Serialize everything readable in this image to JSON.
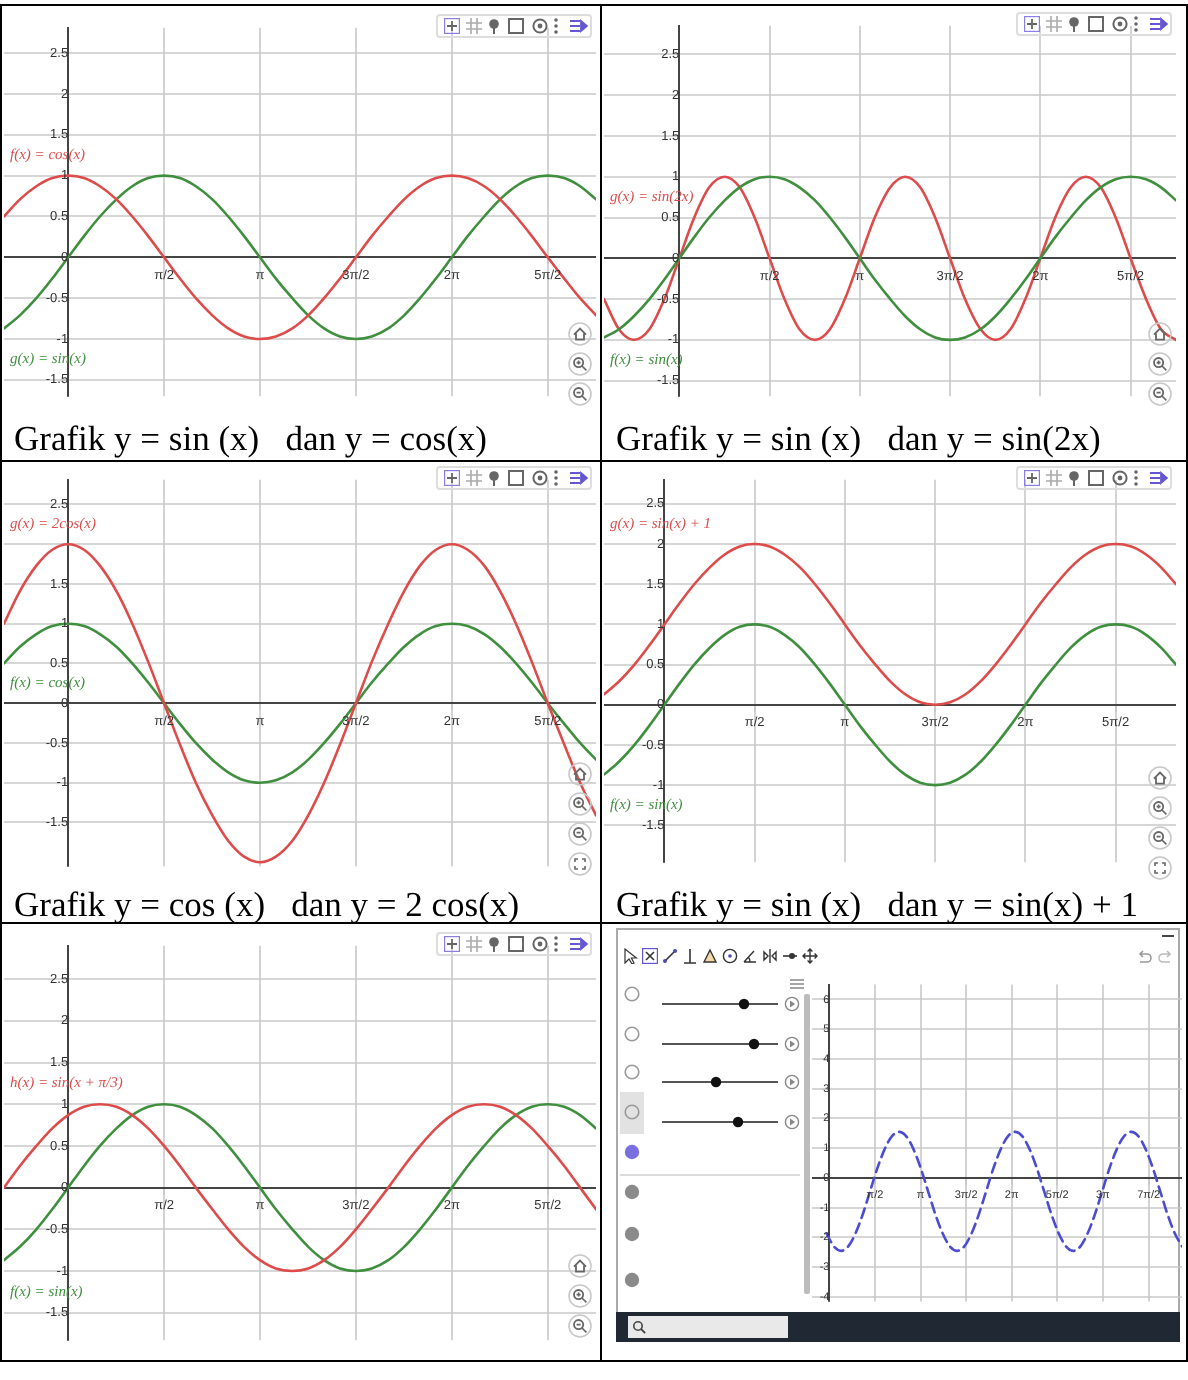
{
  "chart_data": [
    {
      "type": "line",
      "x": [
        -1.05,
        -0.79,
        -0.52,
        -0.26,
        0,
        0.26,
        0.52,
        0.79,
        1.05,
        1.31,
        1.57,
        1.83,
        2.09,
        2.36,
        2.62,
        2.88,
        3.14,
        3.4,
        3.67,
        3.93,
        4.19,
        4.45,
        4.71,
        4.97,
        5.24,
        5.5,
        5.76,
        6.02,
        6.28,
        6.54,
        6.81,
        7.07,
        7.33,
        7.59,
        7.85,
        8.12,
        8.38,
        8.64
      ],
      "series": [
        {
          "name": "f(x) = cos(x)",
          "color": "#dd4b4b",
          "values": [
            0.5,
            0.71,
            0.87,
            0.97,
            1,
            0.97,
            0.87,
            0.71,
            0.5,
            0.26,
            0,
            -0.26,
            -0.5,
            -0.71,
            -0.87,
            -0.97,
            -1,
            -0.97,
            -0.87,
            -0.71,
            -0.5,
            -0.26,
            0,
            0.26,
            0.5,
            0.71,
            0.87,
            0.97,
            1,
            0.97,
            0.87,
            0.71,
            0.5,
            0.26,
            0,
            -0.26,
            -0.5,
            -0.71
          ]
        },
        {
          "name": "g(x) = sin(x)",
          "color": "#3f8f3f",
          "values": [
            -0.87,
            -0.71,
            -0.5,
            -0.26,
            0,
            0.26,
            0.5,
            0.71,
            0.87,
            0.97,
            1,
            0.97,
            0.87,
            0.71,
            0.5,
            0.26,
            0,
            -0.26,
            -0.5,
            -0.71,
            -0.87,
            -0.97,
            -1,
            -0.97,
            -0.87,
            -0.71,
            -0.5,
            -0.26,
            0,
            0.26,
            0.5,
            0.71,
            0.87,
            0.97,
            1,
            0.97,
            0.87,
            0.71
          ]
        }
      ],
      "xlim": [
        -1.05,
        8.64
      ],
      "ylim": [
        -1.7,
        2.81
      ],
      "xticks": [
        {
          "value": 1.57,
          "label": "π/2"
        },
        {
          "value": 3.14,
          "label": "π"
        },
        {
          "value": 4.71,
          "label": "3π/2"
        },
        {
          "value": 6.28,
          "label": "2π"
        },
        {
          "value": 7.85,
          "label": "5π/2"
        }
      ],
      "yticks": [
        -1.5,
        -1,
        -0.5,
        0,
        0.5,
        1,
        1.5,
        2,
        2.5
      ],
      "grid": true,
      "legend": false,
      "marker": "none",
      "line_style": "solid",
      "annotations": [
        "Grafik y = sin (x)   dan y = cos(x)"
      ]
    },
    {
      "type": "line",
      "x": [
        -1.31,
        -1.05,
        -0.79,
        -0.52,
        -0.26,
        0,
        0.26,
        0.52,
        0.79,
        1.05,
        1.31,
        1.57,
        1.83,
        2.09,
        2.36,
        2.62,
        2.88,
        3.14,
        3.4,
        3.67,
        3.93,
        4.19,
        4.45,
        4.71,
        4.97,
        5.24,
        5.5,
        5.76,
        6.02,
        6.28,
        6.54,
        6.81,
        7.07,
        7.33,
        7.59,
        7.85,
        8.12,
        8.38,
        8.64
      ],
      "series": [
        {
          "name": "f(x) = sin(x)",
          "color": "#3f8f3f",
          "values": [
            -0.97,
            -0.87,
            -0.71,
            -0.5,
            -0.26,
            0,
            0.26,
            0.5,
            0.71,
            0.87,
            0.97,
            1,
            0.97,
            0.87,
            0.71,
            0.5,
            0.26,
            0,
            -0.26,
            -0.5,
            -0.71,
            -0.87,
            -0.97,
            -1,
            -0.97,
            -0.87,
            -0.71,
            -0.5,
            -0.26,
            0,
            0.26,
            0.5,
            0.71,
            0.87,
            0.97,
            1,
            0.97,
            0.87,
            0.71
          ]
        },
        {
          "name": "g(x) = sin(2x)",
          "color": "#dd4b4b",
          "values": [
            -0.5,
            -0.87,
            -1,
            -0.87,
            -0.5,
            0,
            0.5,
            0.87,
            1,
            0.87,
            0.5,
            0,
            -0.5,
            -0.87,
            -1,
            -0.87,
            -0.5,
            0,
            0.5,
            0.87,
            1,
            0.87,
            0.5,
            0,
            -0.5,
            -0.87,
            -1,
            -0.87,
            -0.5,
            0,
            0.5,
            0.87,
            1,
            0.87,
            0.5,
            0,
            -0.5,
            -0.87,
            -1
          ]
        }
      ],
      "xlim": [
        -1.31,
        8.64
      ],
      "ylim": [
        -1.69,
        2.85
      ],
      "xticks": [
        {
          "value": 1.57,
          "label": "π/2"
        },
        {
          "value": 3.14,
          "label": "π"
        },
        {
          "value": 4.71,
          "label": "3π/2"
        },
        {
          "value": 6.28,
          "label": "2π"
        },
        {
          "value": 7.85,
          "label": "5π/2"
        }
      ],
      "yticks": [
        -1.5,
        -1,
        -0.5,
        0,
        0.5,
        1,
        1.5,
        2,
        2.5
      ],
      "grid": true,
      "legend": false,
      "marker": "none",
      "line_style": "solid",
      "annotations": [
        "Grafik y = sin (x)   dan y = sin(2x)"
      ]
    },
    {
      "type": "line",
      "x": [
        -1.05,
        -0.79,
        -0.52,
        -0.26,
        0,
        0.26,
        0.52,
        0.79,
        1.05,
        1.31,
        1.57,
        1.83,
        2.09,
        2.36,
        2.62,
        2.88,
        3.14,
        3.4,
        3.67,
        3.93,
        4.19,
        4.45,
        4.71,
        4.97,
        5.24,
        5.5,
        5.76,
        6.02,
        6.28,
        6.54,
        6.81,
        7.07,
        7.33,
        7.59,
        7.85,
        8.12,
        8.38,
        8.64
      ],
      "series": [
        {
          "name": "g(x) = 2cos(x)",
          "color": "#dd4b4b",
          "values": [
            1,
            1.41,
            1.73,
            1.93,
            2,
            1.93,
            1.73,
            1.41,
            1,
            0.52,
            0,
            -0.52,
            -1,
            -1.41,
            -1.73,
            -1.93,
            -2,
            -1.93,
            -1.73,
            -1.41,
            -1,
            -0.52,
            0,
            0.52,
            1,
            1.41,
            1.73,
            1.93,
            2,
            1.93,
            1.73,
            1.41,
            1,
            0.52,
            0,
            -0.52,
            -1,
            -1.41
          ]
        },
        {
          "name": "f(x) = cos(x)",
          "color": "#3f8f3f",
          "values": [
            0.5,
            0.71,
            0.87,
            0.97,
            1,
            0.97,
            0.87,
            0.71,
            0.5,
            0.26,
            0,
            -0.26,
            -0.5,
            -0.71,
            -0.87,
            -0.97,
            -1,
            -0.97,
            -0.87,
            -0.71,
            -0.5,
            -0.26,
            0,
            0.26,
            0.5,
            0.71,
            0.87,
            0.97,
            1,
            0.97,
            0.87,
            0.71,
            0.5,
            0.26,
            0,
            -0.26,
            -0.5,
            -0.71
          ]
        }
      ],
      "xlim": [
        -1.05,
        8.64
      ],
      "ylim": [
        -2.05,
        2.81
      ],
      "xticks": [
        {
          "value": 1.57,
          "label": "π/2"
        },
        {
          "value": 3.14,
          "label": "π"
        },
        {
          "value": 4.71,
          "label": "3π/2"
        },
        {
          "value": 6.28,
          "label": "2π"
        },
        {
          "value": 7.85,
          "label": "5π/2"
        }
      ],
      "yticks": [
        -1.5,
        -1,
        -0.5,
        0,
        0.5,
        1,
        1.5,
        {
          "value": 2,
          "label": null
        },
        2.5
      ],
      "grid": true,
      "legend": false,
      "marker": "none",
      "line_style": "solid",
      "annotations": [
        "Grafik y = cos (x)   dan y = 2 cos(x)"
      ]
    },
    {
      "type": "line",
      "x": [
        -1.05,
        -0.79,
        -0.52,
        -0.26,
        0,
        0.26,
        0.52,
        0.79,
        1.05,
        1.31,
        1.57,
        1.83,
        2.09,
        2.36,
        2.62,
        2.88,
        3.14,
        3.4,
        3.67,
        3.93,
        4.19,
        4.45,
        4.71,
        4.97,
        5.24,
        5.5,
        5.76,
        6.02,
        6.28,
        6.54,
        6.81,
        7.07,
        7.33,
        7.59,
        7.85,
        8.12,
        8.38,
        8.64,
        8.9
      ],
      "series": [
        {
          "name": "g(x) = sin(x) + 1",
          "color": "#dd4b4b",
          "values": [
            0.13,
            0.29,
            0.5,
            0.74,
            1,
            1.26,
            1.5,
            1.71,
            1.87,
            1.97,
            2,
            1.97,
            1.87,
            1.71,
            1.5,
            1.26,
            1,
            0.74,
            0.5,
            0.29,
            0.13,
            0.03,
            0,
            0.03,
            0.13,
            0.29,
            0.5,
            0.74,
            1,
            1.26,
            1.5,
            1.71,
            1.87,
            1.97,
            2,
            1.97,
            1.87,
            1.71,
            1.5
          ]
        },
        {
          "name": "f(x) = sin(x)",
          "color": "#3f8f3f",
          "values": [
            -0.87,
            -0.71,
            -0.5,
            -0.26,
            0,
            0.26,
            0.5,
            0.71,
            0.87,
            0.97,
            1,
            0.97,
            0.87,
            0.71,
            0.5,
            0.26,
            0,
            -0.26,
            -0.5,
            -0.71,
            -0.87,
            -0.97,
            -1,
            -0.97,
            -0.87,
            -0.71,
            -0.5,
            -0.26,
            0,
            0.26,
            0.5,
            0.71,
            0.87,
            0.97,
            1,
            0.97,
            0.87,
            0.71,
            0.5
          ]
        }
      ],
      "xlim": [
        -1.05,
        8.9
      ],
      "ylim": [
        -1.96,
        2.8
      ],
      "xticks": [
        {
          "value": 1.57,
          "label": "π/2"
        },
        {
          "value": 3.14,
          "label": "π"
        },
        {
          "value": 4.71,
          "label": "3π/2"
        },
        {
          "value": 6.28,
          "label": "2π"
        },
        {
          "value": 7.85,
          "label": "5π/2"
        }
      ],
      "yticks": [
        -1.5,
        -1,
        -0.5,
        0,
        0.5,
        1,
        1.5,
        2,
        2.5
      ],
      "grid": true,
      "legend": false,
      "marker": "none",
      "line_style": "solid",
      "annotations": [
        "Grafik y = sin (x)   dan y = sin(x) + 1"
      ]
    },
    {
      "type": "line",
      "x": [
        -1.05,
        -0.79,
        -0.52,
        -0.26,
        0,
        0.26,
        0.52,
        0.79,
        1.05,
        1.31,
        1.57,
        1.83,
        2.09,
        2.36,
        2.62,
        2.88,
        3.14,
        3.4,
        3.67,
        3.93,
        4.19,
        4.45,
        4.71,
        4.97,
        5.24,
        5.5,
        5.76,
        6.02,
        6.28,
        6.54,
        6.81,
        7.07,
        7.33,
        7.59,
        7.85,
        8.12,
        8.38,
        8.64
      ],
      "series": [
        {
          "name": "h(x) = sin(x + π/3)",
          "color": "#dd4b4b",
          "values": [
            0,
            0.26,
            0.5,
            0.71,
            0.87,
            0.97,
            1,
            0.97,
            0.87,
            0.71,
            0.5,
            0.26,
            0,
            -0.26,
            -0.5,
            -0.71,
            -0.87,
            -0.97,
            -1,
            -0.97,
            -0.87,
            -0.71,
            -0.5,
            -0.26,
            0,
            0.26,
            0.5,
            0.71,
            0.87,
            0.97,
            1,
            0.97,
            0.87,
            0.71,
            0.5,
            0.26,
            0,
            -0.26
          ]
        },
        {
          "name": "f(x) = sin(x)",
          "color": "#3f8f3f",
          "values": [
            -0.87,
            -0.71,
            -0.5,
            -0.26,
            0,
            0.26,
            0.5,
            0.71,
            0.87,
            0.97,
            1,
            0.97,
            0.87,
            0.71,
            0.5,
            0.26,
            0,
            -0.26,
            -0.5,
            -0.71,
            -0.87,
            -0.97,
            -1,
            -0.97,
            -0.87,
            -0.71,
            -0.5,
            -0.26,
            0,
            0.26,
            0.5,
            0.71,
            0.87,
            0.97,
            1,
            0.97,
            0.87,
            0.71
          ]
        }
      ],
      "xlim": [
        -1.05,
        8.64
      ],
      "ylim": [
        -1.83,
        2.9
      ],
      "xticks": [
        {
          "value": 1.57,
          "label": "π/2"
        },
        {
          "value": 3.14,
          "label": "π"
        },
        {
          "value": 4.71,
          "label": "3π/2"
        },
        {
          "value": 6.28,
          "label": "2π"
        },
        {
          "value": 7.85,
          "label": "5π/2"
        }
      ],
      "yticks": [
        -1.5,
        -1,
        -0.5,
        0,
        0.5,
        1,
        1.5,
        2,
        2.5
      ],
      "grid": true,
      "legend": false,
      "marker": "none",
      "line_style": "solid"
    },
    {
      "type": "line",
      "x": [
        -0.1,
        0.15,
        0.4,
        0.65,
        0.9,
        1.15,
        1.4,
        1.65,
        1.9,
        2.15,
        2.4,
        2.65,
        2.9,
        3.15,
        3.4,
        3.65,
        3.9,
        4.15,
        4.4,
        4.65,
        4.9,
        5.15,
        5.4,
        5.65,
        5.9,
        6.15,
        6.4,
        6.65,
        6.9,
        7.15,
        7.4,
        7.65,
        7.9,
        8.15,
        8.4,
        8.65,
        8.9,
        9.15,
        9.4,
        9.65,
        9.9,
        10.15,
        10.4,
        10.65,
        10.9,
        11.15,
        11.4,
        11.65,
        11.9,
        12.15
      ],
      "series": [
        {
          "color": "#4c4cd0",
          "values": [
            -1.86,
            -2.3,
            -2.45,
            -2.3,
            -1.86,
            -1.22,
            -0.45,
            0.32,
            0.96,
            1.4,
            1.55,
            1.4,
            0.96,
            0.32,
            -0.45,
            -1.22,
            -1.86,
            -2.3,
            -2.45,
            -2.3,
            -1.86,
            -1.22,
            -0.45,
            0.32,
            0.96,
            1.4,
            1.55,
            1.4,
            0.96,
            0.32,
            -0.45,
            -1.22,
            -1.86,
            -2.3,
            -2.45,
            -2.3,
            -1.86,
            -1.22,
            -0.45,
            0.32,
            0.96,
            1.4,
            1.55,
            1.4,
            0.96,
            0.32,
            -0.45,
            -1.22,
            -1.86,
            -2.3
          ]
        }
      ],
      "xlim": [
        -0.6,
        12.15
      ],
      "ylim": [
        -4.15,
        6.5
      ],
      "xticks": [
        {
          "value": 1.57,
          "label": "π/2"
        },
        {
          "value": 3.14,
          "label": "π"
        },
        {
          "value": 4.71,
          "label": "3π/2"
        },
        {
          "value": 6.28,
          "label": "2π"
        },
        {
          "value": 7.85,
          "label": "5π/2"
        },
        {
          "value": 9.42,
          "label": "3π"
        },
        {
          "value": 11,
          "label": "7π/2"
        }
      ],
      "yticks": [
        -4,
        -3,
        -2,
        -1,
        0,
        1,
        2,
        3,
        4,
        5,
        6
      ],
      "grid": true,
      "legend": false,
      "marker": "none",
      "line_style": "dashed"
    }
  ]
}
